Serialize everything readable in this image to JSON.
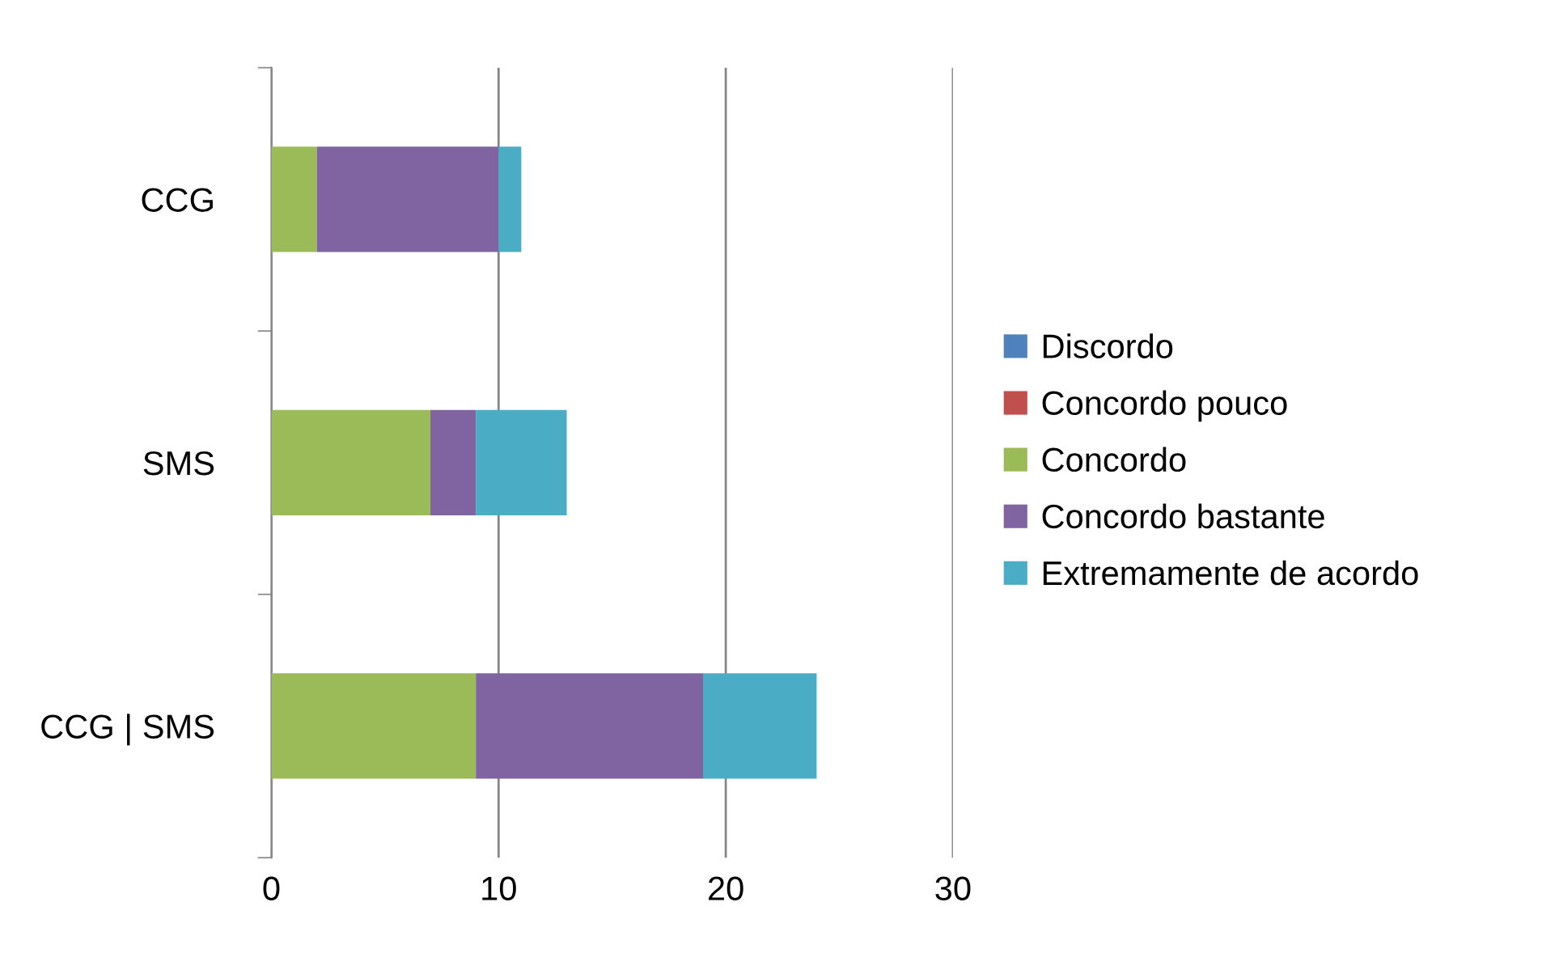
{
  "chart_data": {
    "type": "bar",
    "orientation": "horizontal",
    "stacked": true,
    "categories": [
      "CCG",
      "SMS",
      "CCG | SMS"
    ],
    "series": [
      {
        "name": "Discordo",
        "color": "#4f81bd",
        "values": [
          0,
          0,
          0
        ]
      },
      {
        "name": "Concordo pouco",
        "color": "#c0504d",
        "values": [
          0,
          0,
          0
        ]
      },
      {
        "name": "Concordo",
        "color": "#9bbb59",
        "values": [
          2,
          7,
          9
        ]
      },
      {
        "name": "Concordo bastante",
        "color": "#8064a2",
        "values": [
          8,
          2,
          10
        ]
      },
      {
        "name": "Extremamente de acordo",
        "color": "#4bacc6",
        "values": [
          1,
          4,
          5
        ]
      }
    ],
    "xlim": [
      0,
      30
    ],
    "xticks": [
      0,
      10,
      20,
      30
    ],
    "grid": "x",
    "legend": "right"
  }
}
